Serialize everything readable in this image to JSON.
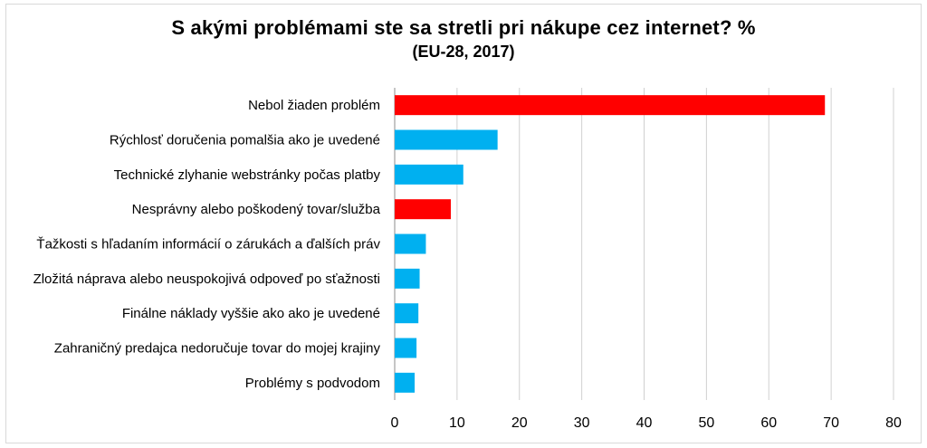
{
  "chart_data": {
    "type": "bar",
    "orientation": "horizontal",
    "title": "S akými problémami ste sa stretli pri nákupe cez internet? %",
    "subtitle": "(EU-28, 2017)",
    "xlim": [
      0,
      80
    ],
    "xticks": [
      "0",
      "10",
      "20",
      "30",
      "40",
      "50",
      "60",
      "70",
      "80"
    ],
    "grid": true,
    "categories": [
      "Nebol žiaden problém",
      "Rýchlosť doručenia pomalšia ako je uvedené",
      "Technické zlyhanie webstránky počas platby",
      "Nesprávny alebo poškodený tovar/služba",
      "Ťažkosti s hľadaním informácií o zárukách a ďalších práv",
      "Zložitá náprava alebo neuspokojivá odpoveď po sťažnosti",
      "Finálne náklady vyššie ako ako je uvedené",
      "Zahraničný predajca nedoručuje tovar do mojej krajiny",
      "Problémy s podvodom"
    ],
    "values": [
      69,
      16.5,
      11,
      9,
      5,
      4,
      3.8,
      3.5,
      3.2
    ],
    "colors": [
      "#ff0000",
      "#00b0f0",
      "#00b0f0",
      "#ff0000",
      "#00b0f0",
      "#00b0f0",
      "#00b0f0",
      "#00b0f0",
      "#00b0f0"
    ]
  }
}
